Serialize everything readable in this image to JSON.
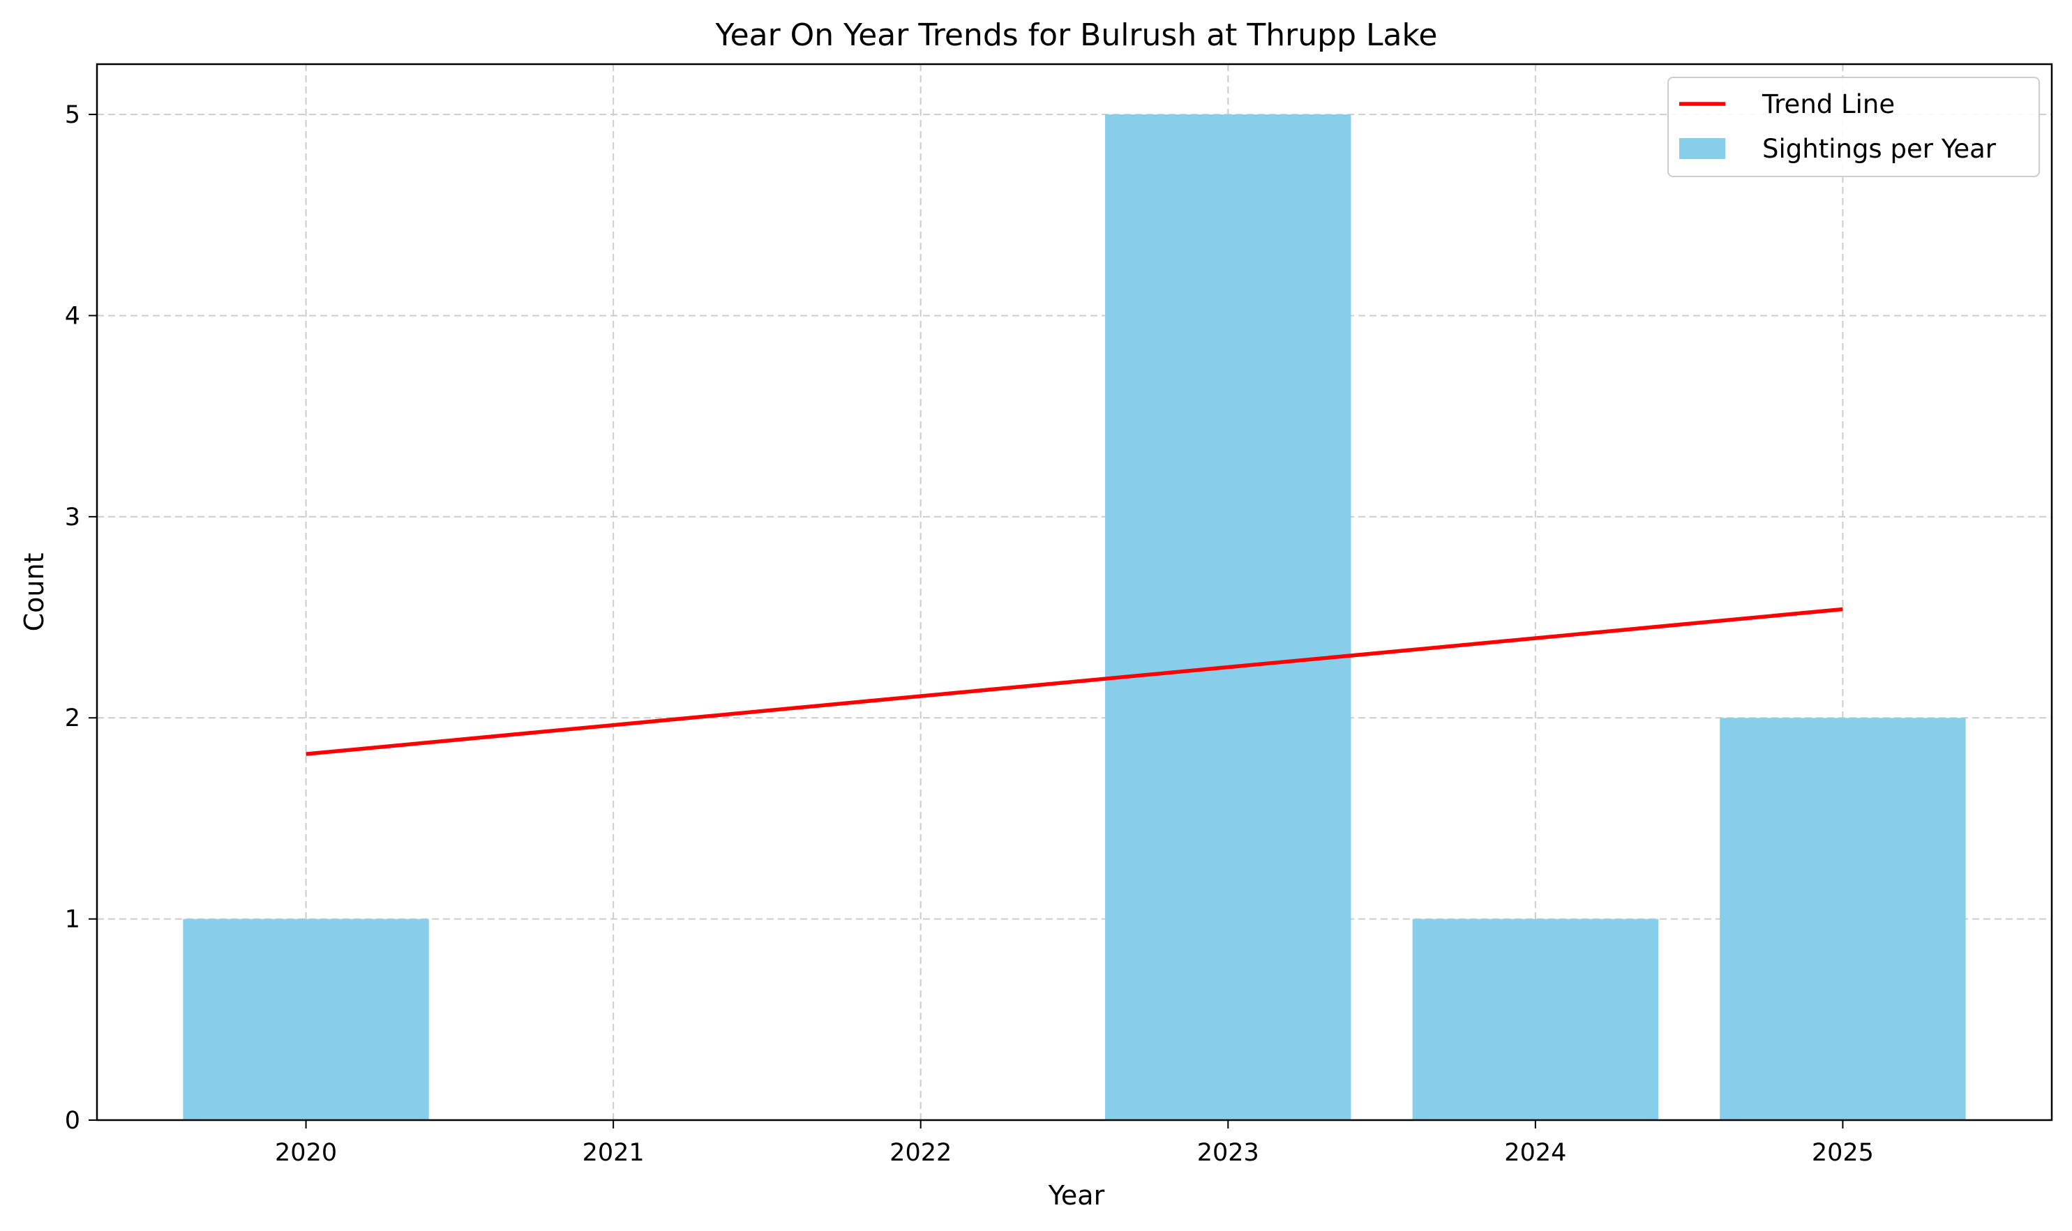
{
  "chart_data": {
    "type": "bar",
    "title": "Year On Year Trends for Bulrush at Thrupp Lake",
    "xlabel": "Year",
    "ylabel": "Count",
    "categories": [
      "2020",
      "2021",
      "2022",
      "2023",
      "2024",
      "2025"
    ],
    "x": [
      2020,
      2021,
      2022,
      2023,
      2024,
      2025
    ],
    "series": [
      {
        "name": "Sightings per Year",
        "kind": "bar",
        "color": "#87CEEB",
        "values": [
          1,
          0,
          0,
          5,
          1,
          2
        ]
      },
      {
        "name": "Trend Line",
        "kind": "line",
        "color": "#FF0000",
        "points": [
          [
            2020,
            1.82
          ],
          [
            2025,
            2.54
          ]
        ]
      }
    ],
    "xlim": [
      2019.32,
      2025.68
    ],
    "ylim": [
      0,
      5.25
    ],
    "yticks": [
      0,
      1,
      2,
      3,
      4,
      5
    ],
    "grid": true,
    "legend": "top-right"
  }
}
